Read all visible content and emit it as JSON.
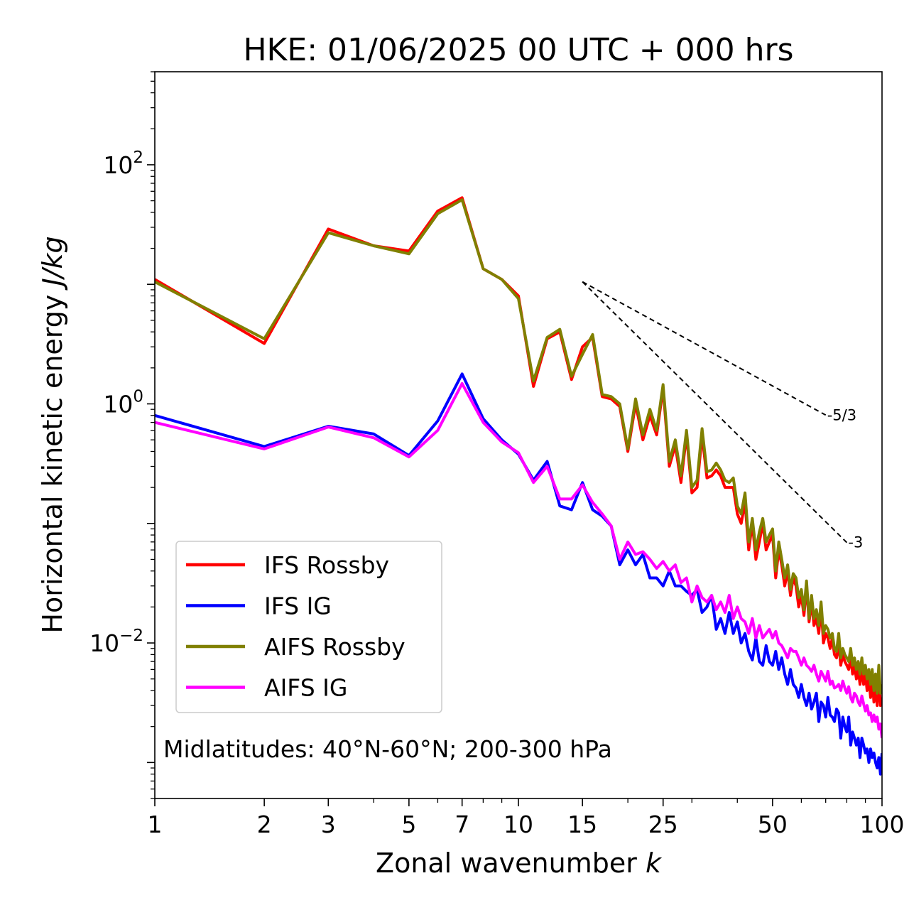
{
  "chart_data": {
    "type": "line",
    "title": "HKE: 01/06/2025 00 UTC + 000 hrs",
    "xlabel": {
      "main": "Zonal wavenumber ",
      "italic": "k"
    },
    "ylabel": {
      "main": "Horizontal kinetic energy ",
      "italic": "J/kg"
    },
    "x_scale": "log",
    "y_scale": "log",
    "xlim": [
      1,
      100
    ],
    "ylim": [
      0.0005,
      600
    ],
    "x_ticks": [
      {
        "value": 1,
        "label": "1"
      },
      {
        "value": 2,
        "label": "2"
      },
      {
        "value": 3,
        "label": "3"
      },
      {
        "value": 5,
        "label": "5"
      },
      {
        "value": 7,
        "label": "7"
      },
      {
        "value": 10,
        "label": "10"
      },
      {
        "value": 15,
        "label": "15"
      },
      {
        "value": 25,
        "label": "25"
      },
      {
        "value": 50,
        "label": "50"
      },
      {
        "value": 100,
        "label": "100"
      }
    ],
    "y_ticks": [
      {
        "value": 100,
        "base": "10",
        "exp": "2"
      },
      {
        "value": 1,
        "base": "10",
        "exp": "0"
      },
      {
        "value": 0.01,
        "base": "10",
        "exp": "−2"
      }
    ],
    "legend_position": "lower-left",
    "annotation": "Midlatitudes: 40°N-60°N; 200-300 hPa",
    "reference_lines": [
      {
        "label": "-5/3",
        "slope": -1.6667,
        "x_start": 15,
        "y_start": 10.5,
        "x_end": 70
      },
      {
        "label": "-3",
        "slope": -3,
        "x_start": 15,
        "y_start": 10.5,
        "x_end": 80
      }
    ],
    "series": [
      {
        "name": "IFS Rossby",
        "color": "#ff0000",
        "x": [
          1,
          2,
          3,
          4,
          5,
          6,
          7,
          8,
          9,
          10,
          11,
          12,
          13,
          14,
          15,
          16,
          17,
          18,
          19,
          20,
          21,
          22,
          23,
          24,
          25,
          26,
          27,
          28,
          29,
          30,
          31,
          32,
          33,
          34,
          35,
          36,
          37,
          38,
          39,
          40,
          41,
          42,
          43,
          44,
          45,
          46,
          47,
          48,
          49,
          50,
          51,
          52,
          53,
          54,
          55,
          56,
          57,
          58,
          59,
          60,
          61,
          62,
          63,
          64,
          65,
          66,
          67,
          68,
          69,
          70,
          71,
          72,
          73,
          74,
          75,
          76,
          77,
          78,
          79,
          80,
          81,
          82,
          83,
          84,
          85,
          86,
          87,
          88,
          89,
          90,
          91,
          92,
          93,
          94,
          95,
          96,
          97,
          98,
          99,
          100
        ],
        "y": [
          11,
          3.2,
          29,
          21,
          19,
          41,
          53,
          13.5,
          11,
          8,
          1.4,
          3.5,
          4,
          1.6,
          3,
          3.6,
          1.15,
          1.1,
          0.95,
          0.4,
          1.0,
          0.5,
          0.8,
          0.55,
          1.35,
          0.3,
          0.45,
          0.22,
          0.55,
          0.18,
          0.2,
          0.55,
          0.24,
          0.25,
          0.28,
          0.25,
          0.2,
          0.2,
          0.2,
          0.12,
          0.1,
          0.15,
          0.06,
          0.1,
          0.05,
          0.07,
          0.1,
          0.06,
          0.07,
          0.08,
          0.035,
          0.06,
          0.045,
          0.03,
          0.04,
          0.025,
          0.035,
          0.03,
          0.02,
          0.025,
          0.017,
          0.03,
          0.015,
          0.022,
          0.014,
          0.016,
          0.012,
          0.02,
          0.01,
          0.012,
          0.011,
          0.009,
          0.011,
          0.008,
          0.0075,
          0.01,
          0.0065,
          0.008,
          0.007,
          0.0065,
          0.006,
          0.0075,
          0.0055,
          0.0065,
          0.005,
          0.006,
          0.0045,
          0.006,
          0.0045,
          0.0055,
          0.004,
          0.005,
          0.0035,
          0.005,
          0.0032,
          0.0045,
          0.003,
          0.0055,
          0.003,
          0.0035
        ]
      },
      {
        "name": "IFS IG",
        "color": "#0000ff",
        "x": [
          1,
          2,
          3,
          4,
          5,
          6,
          7,
          8,
          9,
          10,
          11,
          12,
          13,
          14,
          15,
          16,
          17,
          18,
          19,
          20,
          21,
          22,
          23,
          24,
          25,
          26,
          27,
          28,
          29,
          30,
          31,
          32,
          33,
          34,
          35,
          36,
          37,
          38,
          39,
          40,
          41,
          42,
          43,
          44,
          45,
          46,
          47,
          48,
          49,
          50,
          51,
          52,
          53,
          54,
          55,
          56,
          57,
          58,
          59,
          60,
          61,
          62,
          63,
          64,
          65,
          66,
          67,
          68,
          69,
          70,
          71,
          72,
          73,
          74,
          75,
          76,
          77,
          78,
          79,
          80,
          81,
          82,
          83,
          84,
          85,
          86,
          87,
          88,
          89,
          90,
          91,
          92,
          93,
          94,
          95,
          96,
          97,
          98,
          99,
          100
        ],
        "y": [
          0.8,
          0.44,
          0.65,
          0.56,
          0.37,
          0.72,
          1.78,
          0.75,
          0.5,
          0.38,
          0.23,
          0.33,
          0.14,
          0.13,
          0.22,
          0.13,
          0.115,
          0.095,
          0.045,
          0.06,
          0.045,
          0.055,
          0.035,
          0.035,
          0.03,
          0.04,
          0.03,
          0.03,
          0.027,
          0.025,
          0.028,
          0.018,
          0.02,
          0.025,
          0.013,
          0.016,
          0.012,
          0.018,
          0.012,
          0.015,
          0.01,
          0.012,
          0.0085,
          0.0072,
          0.011,
          0.007,
          0.0065,
          0.0095,
          0.007,
          0.0065,
          0.0085,
          0.006,
          0.0075,
          0.0055,
          0.0045,
          0.006,
          0.0045,
          0.0042,
          0.0035,
          0.0045,
          0.0035,
          0.003,
          0.0038,
          0.0028,
          0.0032,
          0.0038,
          0.0022,
          0.0032,
          0.003,
          0.0024,
          0.0035,
          0.0025,
          0.0024,
          0.0022,
          0.0028,
          0.0026,
          0.0016,
          0.0024,
          0.002,
          0.0018,
          0.0024,
          0.0014,
          0.0018,
          0.0016,
          0.0014,
          0.0016,
          0.0011,
          0.0016,
          0.0014,
          0.0012,
          0.0013,
          0.001,
          0.0013,
          0.0011,
          0.0012,
          0.001,
          0.0009,
          0.0011,
          0.0008,
          0.0012
        ]
      },
      {
        "name": "AIFS Rossby",
        "color": "#808000",
        "x": [
          1,
          2,
          3,
          4,
          5,
          6,
          7,
          8,
          9,
          10,
          11,
          12,
          13,
          14,
          15,
          16,
          17,
          18,
          19,
          20,
          21,
          22,
          23,
          24,
          25,
          26,
          27,
          28,
          29,
          30,
          31,
          32,
          33,
          34,
          35,
          36,
          37,
          38,
          39,
          40,
          41,
          42,
          43,
          44,
          45,
          46,
          47,
          48,
          49,
          50,
          51,
          52,
          53,
          54,
          55,
          56,
          57,
          58,
          59,
          60,
          61,
          62,
          63,
          64,
          65,
          66,
          67,
          68,
          69,
          70,
          71,
          72,
          73,
          74,
          75,
          76,
          77,
          78,
          79,
          80,
          81,
          82,
          83,
          84,
          85,
          86,
          87,
          88,
          89,
          90,
          91,
          92,
          93,
          94,
          95,
          96,
          97,
          98,
          99,
          100
        ],
        "y": [
          10.5,
          3.5,
          27,
          21,
          18,
          39,
          51,
          13.5,
          11,
          7.6,
          1.55,
          3.6,
          4.2,
          1.7,
          2.6,
          3.8,
          1.2,
          1.15,
          1.0,
          0.42,
          1.1,
          0.55,
          0.9,
          0.6,
          1.45,
          0.33,
          0.5,
          0.25,
          0.6,
          0.2,
          0.23,
          0.62,
          0.27,
          0.28,
          0.32,
          0.28,
          0.23,
          0.22,
          0.24,
          0.14,
          0.12,
          0.18,
          0.07,
          0.11,
          0.06,
          0.085,
          0.11,
          0.07,
          0.08,
          0.09,
          0.04,
          0.07,
          0.05,
          0.035,
          0.045,
          0.028,
          0.038,
          0.035,
          0.024,
          0.028,
          0.019,
          0.033,
          0.016,
          0.025,
          0.016,
          0.019,
          0.014,
          0.022,
          0.012,
          0.014,
          0.013,
          0.011,
          0.012,
          0.009,
          0.0085,
          0.012,
          0.0075,
          0.009,
          0.008,
          0.0075,
          0.007,
          0.009,
          0.0065,
          0.0075,
          0.006,
          0.007,
          0.0055,
          0.0075,
          0.0055,
          0.0065,
          0.005,
          0.006,
          0.0045,
          0.006,
          0.004,
          0.0055,
          0.0038,
          0.0065,
          0.0038,
          0.0045
        ]
      },
      {
        "name": "AIFS IG",
        "color": "#ff00ff",
        "x": [
          1,
          2,
          3,
          4,
          5,
          6,
          7,
          8,
          9,
          10,
          11,
          12,
          13,
          14,
          15,
          16,
          17,
          18,
          19,
          20,
          21,
          22,
          23,
          24,
          25,
          26,
          27,
          28,
          29,
          30,
          31,
          32,
          33,
          34,
          35,
          36,
          37,
          38,
          39,
          40,
          41,
          42,
          43,
          44,
          45,
          46,
          47,
          48,
          49,
          50,
          51,
          52,
          53,
          54,
          55,
          56,
          57,
          58,
          59,
          60,
          61,
          62,
          63,
          64,
          65,
          66,
          67,
          68,
          69,
          70,
          71,
          72,
          73,
          74,
          75,
          76,
          77,
          78,
          79,
          80,
          81,
          82,
          83,
          84,
          85,
          86,
          87,
          88,
          89,
          90,
          91,
          92,
          93,
          94,
          95,
          96,
          97,
          98,
          99,
          100
        ],
        "y": [
          0.7,
          0.42,
          0.64,
          0.52,
          0.36,
          0.6,
          1.48,
          0.7,
          0.48,
          0.39,
          0.22,
          0.3,
          0.16,
          0.16,
          0.21,
          0.15,
          0.12,
          0.095,
          0.05,
          0.07,
          0.055,
          0.058,
          0.05,
          0.042,
          0.048,
          0.04,
          0.045,
          0.032,
          0.035,
          0.022,
          0.03,
          0.024,
          0.022,
          0.025,
          0.019,
          0.022,
          0.018,
          0.025,
          0.016,
          0.02,
          0.016,
          0.015,
          0.012,
          0.016,
          0.011,
          0.014,
          0.011,
          0.012,
          0.013,
          0.011,
          0.0125,
          0.01,
          0.0095,
          0.0085,
          0.0075,
          0.009,
          0.0085,
          0.0085,
          0.0075,
          0.0065,
          0.0075,
          0.0065,
          0.0062,
          0.0058,
          0.0065,
          0.0055,
          0.0048,
          0.0058,
          0.0053,
          0.0048,
          0.0058,
          0.0045,
          0.0048,
          0.0042,
          0.0043,
          0.0045,
          0.004,
          0.0048,
          0.0042,
          0.0038,
          0.0043,
          0.0035,
          0.0032,
          0.0038,
          0.0036,
          0.0032,
          0.003,
          0.0036,
          0.0031,
          0.0027,
          0.003,
          0.0025,
          0.0026,
          0.0022,
          0.0025,
          0.0022,
          0.0024,
          0.0019,
          0.0021,
          0.0016
        ]
      }
    ]
  }
}
